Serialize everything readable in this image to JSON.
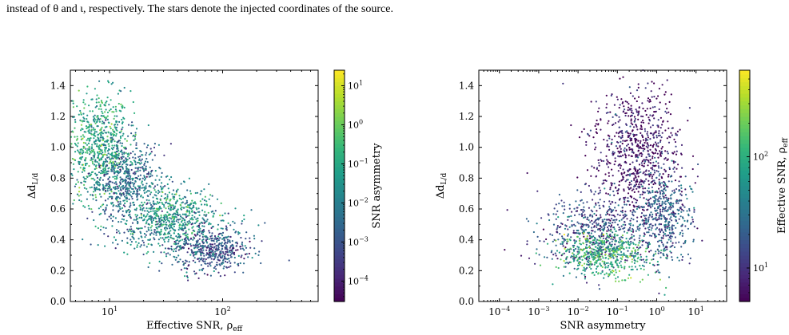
{
  "caption": "instead of θ and ι, respectively. The stars denote the injected coordinates of the source.",
  "colormap": [
    "#440154",
    "#482878",
    "#3e4989",
    "#31688e",
    "#26828e",
    "#1f9e89",
    "#35b779",
    "#6ece58",
    "#b5de2b",
    "#fde725"
  ],
  "chart_data": [
    {
      "type": "scatter",
      "xlabel": "Effective SNR, ρ_eff",
      "ylabel": "Δd_L/d_L (Gpc)",
      "xscale": "log",
      "xlim": [
        4.5,
        700
      ],
      "ylim": [
        0.0,
        1.5
      ],
      "x_ticks": [
        {
          "value": 10,
          "label": "10^1"
        },
        {
          "value": 100,
          "label": "10^2"
        }
      ],
      "y_ticks": [
        "0.0",
        "0.2",
        "0.4",
        "0.6",
        "0.8",
        "1.0",
        "1.2",
        "1.4"
      ],
      "colorbar": {
        "label": "SNR asymmetry",
        "scale": "log",
        "range": [
          3e-05,
          25
        ],
        "ticks": [
          {
            "value": 10,
            "label": "10^1"
          },
          {
            "value": 1,
            "label": "10^0"
          },
          {
            "value": 0.1,
            "label": "10^−1"
          },
          {
            "value": 0.01,
            "label": "10^−2"
          },
          {
            "value": 0.001,
            "label": "10^−3"
          },
          {
            "value": 0.0001,
            "label": "10^−4"
          }
        ]
      },
      "clusters": [
        {
          "x_center": 8,
          "y_center": 1.0,
          "x_spread": 0.14,
          "y_spread": 0.18,
          "color_value": 0.6,
          "n": 700
        },
        {
          "x_center": 14,
          "y_center": 0.78,
          "x_spread": 0.16,
          "y_spread": 0.14,
          "color_value": 0.35,
          "n": 600
        },
        {
          "x_center": 35,
          "y_center": 0.55,
          "x_spread": 0.18,
          "y_spread": 0.1,
          "color_value": 0.55,
          "n": 500
        },
        {
          "x_center": 80,
          "y_center": 0.33,
          "x_spread": 0.16,
          "y_spread": 0.07,
          "color_value": 0.25,
          "n": 450
        },
        {
          "x_center": 40,
          "y_center": 0.45,
          "x_spread": 0.3,
          "y_spread": 0.12,
          "color_value": 0.4,
          "n": 250
        }
      ]
    },
    {
      "type": "scatter",
      "xlabel": "SNR asymmetry",
      "ylabel": "Δd_L/d_L (Gpc)",
      "xscale": "log",
      "xlim": [
        3e-05,
        60
      ],
      "ylim": [
        0.0,
        1.5
      ],
      "x_ticks": [
        {
          "value": 0.0001,
          "label": "10^−4"
        },
        {
          "value": 0.001,
          "label": "10^−3"
        },
        {
          "value": 0.01,
          "label": "10^−2"
        },
        {
          "value": 0.1,
          "label": "10^−1"
        },
        {
          "value": 1,
          "label": "10^0"
        },
        {
          "value": 10,
          "label": "10^1"
        }
      ],
      "y_ticks": [
        "0.0",
        "0.2",
        "0.4",
        "0.6",
        "0.8",
        "1.0",
        "1.2",
        "1.4"
      ],
      "colorbar": {
        "label": "Effective SNR, ρ_eff",
        "scale": "log",
        "range": [
          5,
          600
        ],
        "ticks": [
          {
            "value": 100,
            "label": "10^2"
          },
          {
            "value": 10,
            "label": "10^1"
          }
        ]
      },
      "clusters": [
        {
          "x_center": 0.3,
          "y_center": 0.95,
          "x_spread": 0.55,
          "y_spread": 0.22,
          "color_value": 0.05,
          "n": 800
        },
        {
          "x_center": 0.03,
          "y_center": 0.45,
          "x_spread": 0.75,
          "y_spread": 0.12,
          "color_value": 0.25,
          "n": 600
        },
        {
          "x_center": 0.05,
          "y_center": 0.3,
          "x_spread": 0.6,
          "y_spread": 0.07,
          "color_value": 0.65,
          "n": 450
        },
        {
          "x_center": 1.5,
          "y_center": 0.55,
          "x_spread": 0.35,
          "y_spread": 0.15,
          "color_value": 0.3,
          "n": 450
        }
      ]
    }
  ]
}
